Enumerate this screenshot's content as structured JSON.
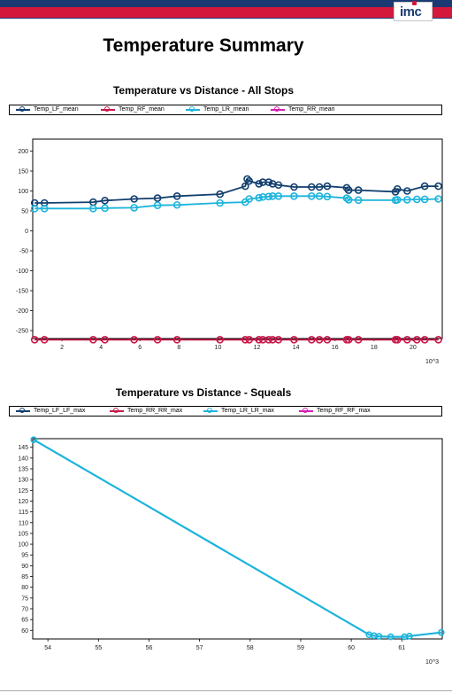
{
  "header": {
    "logo_text": "imc",
    "brand_colors": {
      "navy": "#1b3a73",
      "red": "#d3183c"
    }
  },
  "page": {
    "title": "Temperature Summary"
  },
  "chart_data": [
    {
      "type": "line",
      "title": "Temperature vs Distance - All Stops",
      "x_unit_label": "10^3",
      "xlim": [
        0.5,
        21.5
      ],
      "ylim": [
        -270,
        230
      ],
      "x_ticks": [
        2,
        4,
        6,
        8,
        10,
        12,
        14,
        16,
        18,
        20
      ],
      "y_ticks": [
        200,
        150,
        100,
        50,
        0,
        -50,
        -100,
        -150,
        -200,
        -250
      ],
      "grid": false,
      "legend_position": "top",
      "series": [
        {
          "name": "Temp_LF_mean",
          "color": "#123f6e",
          "x": [
            0.6,
            1.1,
            3.6,
            4.2,
            5.7,
            6.9,
            7.9,
            10.1,
            11.4,
            11.5,
            11.6,
            12.1,
            12.3,
            12.6,
            12.8,
            13.1,
            13.9,
            14.8,
            15.2,
            15.6,
            16.6,
            16.7,
            17.2,
            19.1,
            19.2,
            19.7,
            20.6,
            21.3
          ],
          "y": [
            70,
            70,
            72,
            76,
            80,
            82,
            87,
            92,
            112,
            130,
            125,
            118,
            122,
            122,
            118,
            115,
            110,
            110,
            110,
            112,
            108,
            102,
            102,
            98,
            105,
            100,
            112,
            112
          ]
        },
        {
          "name": "Temp_RF_mean",
          "color": "#c8194a",
          "x": [
            0.6,
            1.1,
            3.6,
            4.2,
            5.7,
            6.9,
            7.9,
            10.1,
            11.4,
            11.6,
            12.1,
            12.3,
            12.6,
            12.8,
            13.1,
            13.9,
            14.8,
            15.2,
            15.6,
            16.6,
            16.7,
            17.2,
            19.1,
            19.2,
            19.7,
            20.2,
            20.6,
            21.3
          ],
          "y": [
            -273,
            -273,
            -273,
            -273,
            -273,
            -273,
            -273,
            -273,
            -273,
            -273,
            -273,
            -273,
            -273,
            -273,
            -273,
            -273,
            -273,
            -273,
            -273,
            -273,
            -273,
            -273,
            -273,
            -273,
            -273,
            -273,
            -273,
            -273
          ]
        },
        {
          "name": "Temp_LR_mean",
          "color": "#1cb4dc",
          "x": [
            0.6,
            1.1,
            3.6,
            4.2,
            5.7,
            6.9,
            7.9,
            10.1,
            11.4,
            11.6,
            12.1,
            12.3,
            12.6,
            12.8,
            13.1,
            13.9,
            14.8,
            15.2,
            15.6,
            16.6,
            16.7,
            17.2,
            19.1,
            19.2,
            19.7,
            20.2,
            20.6,
            21.3
          ],
          "y": [
            56,
            56,
            56,
            57,
            58,
            64,
            65,
            70,
            72,
            80,
            83,
            85,
            86,
            87,
            87,
            87,
            87,
            87,
            86,
            82,
            78,
            77,
            77,
            78,
            78,
            79,
            79,
            80
          ]
        },
        {
          "name": "Temp_RR_mean",
          "color": "#d61fb5",
          "x": [],
          "y": []
        }
      ]
    },
    {
      "type": "line",
      "title": "Temperature vs Distance - Squeals",
      "x_unit_label": "10^3",
      "xlim": [
        53.7,
        61.8
      ],
      "ylim": [
        56,
        149
      ],
      "x_ticks": [
        54,
        55,
        56,
        57,
        58,
        59,
        60,
        61
      ],
      "y_ticks": [
        145,
        140,
        135,
        130,
        125,
        120,
        115,
        110,
        105,
        100,
        95,
        90,
        85,
        80,
        75,
        70,
        65,
        60
      ],
      "grid": false,
      "legend_position": "top",
      "series": [
        {
          "name": "Temp_LF_LF_max",
          "color": "#123f6e",
          "x": [],
          "y": []
        },
        {
          "name": "Temp_RR_RR_max",
          "color": "#c8194a",
          "x": [],
          "y": []
        },
        {
          "name": "Temp_LR_LR_max",
          "color": "#1cb4dc",
          "x": [
            53.72,
            60.35,
            60.45,
            60.55,
            60.78,
            61.05,
            61.15,
            61.78
          ],
          "y": [
            148.5,
            58,
            57.5,
            57.2,
            57,
            57,
            57.3,
            59
          ]
        },
        {
          "name": "Temp_RF_RF_max",
          "color": "#d61fb5",
          "x": [],
          "y": []
        }
      ]
    }
  ]
}
